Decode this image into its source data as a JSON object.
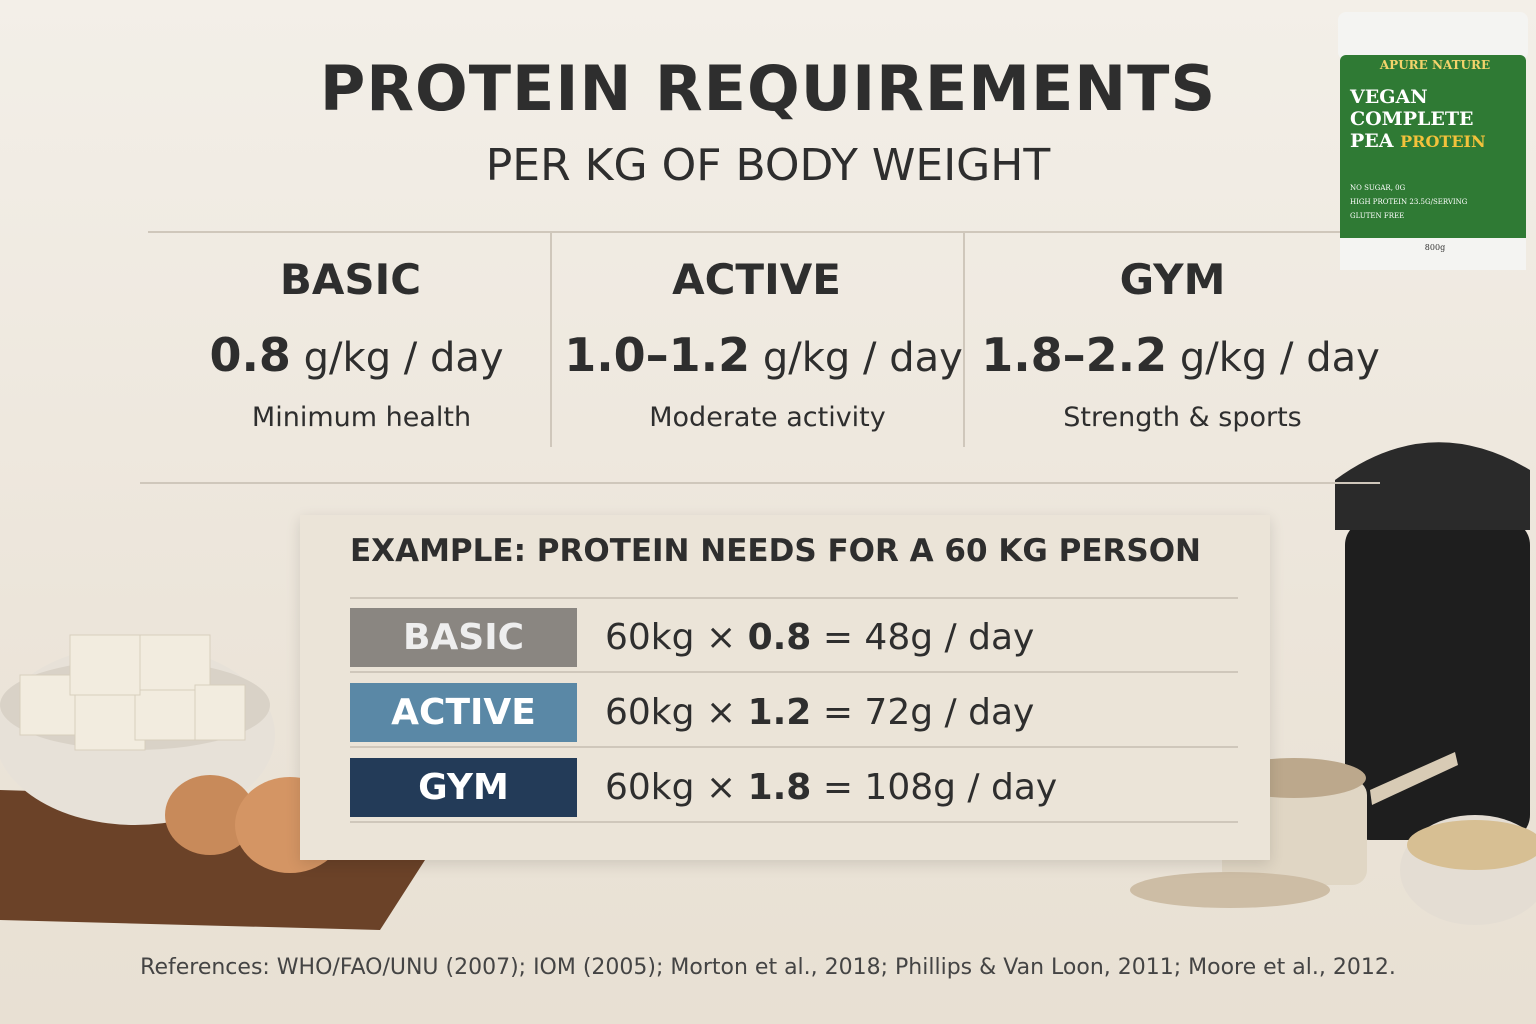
{
  "header": {
    "title": "PROTEIN REQUIREMENTS",
    "subtitle": "PER KG OF BODY WEIGHT"
  },
  "tiers": [
    {
      "name": "BASIC",
      "value": "0.8",
      "unit": "g/kg / day",
      "note": "Minimum health"
    },
    {
      "name": "ACTIVE",
      "value": "1.0–1.2",
      "unit": "g/kg / day",
      "note": "Moderate activity"
    },
    {
      "name": "GYM",
      "value": "1.8–2.2",
      "unit": "g/kg / day",
      "note": "Strength & sports"
    }
  ],
  "example": {
    "title": "EXAMPLE: PROTEIN NEEDS FOR A 60 KG PERSON",
    "rows": [
      {
        "label": "BASIC",
        "prefix": "60kg ×",
        "factor": "0.8",
        "suffix": "= 48g / day"
      },
      {
        "label": "ACTIVE",
        "prefix": "60kg ×",
        "factor": "1.2",
        "suffix": "= 72g / day"
      },
      {
        "label": "GYM",
        "prefix": "60kg ×",
        "factor": "1.8",
        "suffix": "= 108g / day"
      }
    ]
  },
  "product": {
    "brand": "APURE NATURE",
    "line1": "VEGAN",
    "line2": "COMPLETE",
    "line3": "PEA",
    "line4": "PROTEIN",
    "claims": [
      "NO SUGAR, 0G",
      "HIGH PROTEIN 23.5G/SERVING",
      "GLUTEN FREE"
    ],
    "weight": "800g"
  },
  "references": "References: WHO/FAO/UNU (2007); IOM (2005); Morton et al., 2018; Phillips & Van Loon, 2011; Moore et al., 2012."
}
